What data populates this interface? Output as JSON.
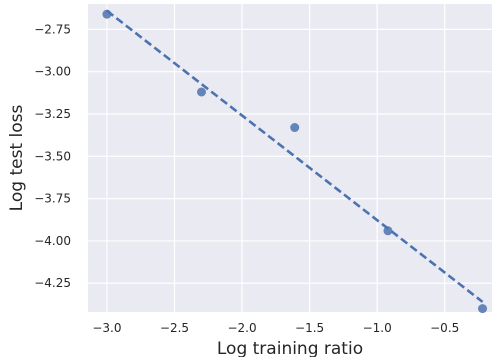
{
  "chart_data": {
    "type": "scatter",
    "title": "",
    "xlabel": "Log training ratio",
    "ylabel": "Log test loss",
    "xlim": [
      -3.14,
      -0.15
    ],
    "ylim": [
      -4.42,
      -2.6
    ],
    "grid": true,
    "x_ticks": [
      -3.0,
      -2.5,
      -2.0,
      -1.5,
      -1.0,
      -0.5
    ],
    "x_tick_labels": [
      "−3.0",
      "−2.5",
      "−2.0",
      "−1.5",
      "−1.0",
      "−0.5"
    ],
    "y_ticks": [
      -2.75,
      -3.0,
      -3.25,
      -3.5,
      -3.75,
      -4.0,
      -4.25
    ],
    "y_tick_labels": [
      "−2.75",
      "−3.00",
      "−3.25",
      "−3.50",
      "−3.75",
      "−4.00",
      "−4.25"
    ],
    "points": [
      {
        "x": -3.0,
        "y": -2.66
      },
      {
        "x": -2.3,
        "y": -3.12
      },
      {
        "x": -1.61,
        "y": -3.33
      },
      {
        "x": -0.92,
        "y": -3.94
      },
      {
        "x": -0.22,
        "y": -4.4
      }
    ],
    "fit_line": {
      "x": [
        -3.0,
        -0.22
      ],
      "y": [
        -2.64,
        -4.36
      ],
      "style": "dashed"
    },
    "colors": {
      "background": "#eaeaf2",
      "grid": "#ffffff",
      "points": "#4c72b0",
      "line": "#4c72b0"
    }
  }
}
